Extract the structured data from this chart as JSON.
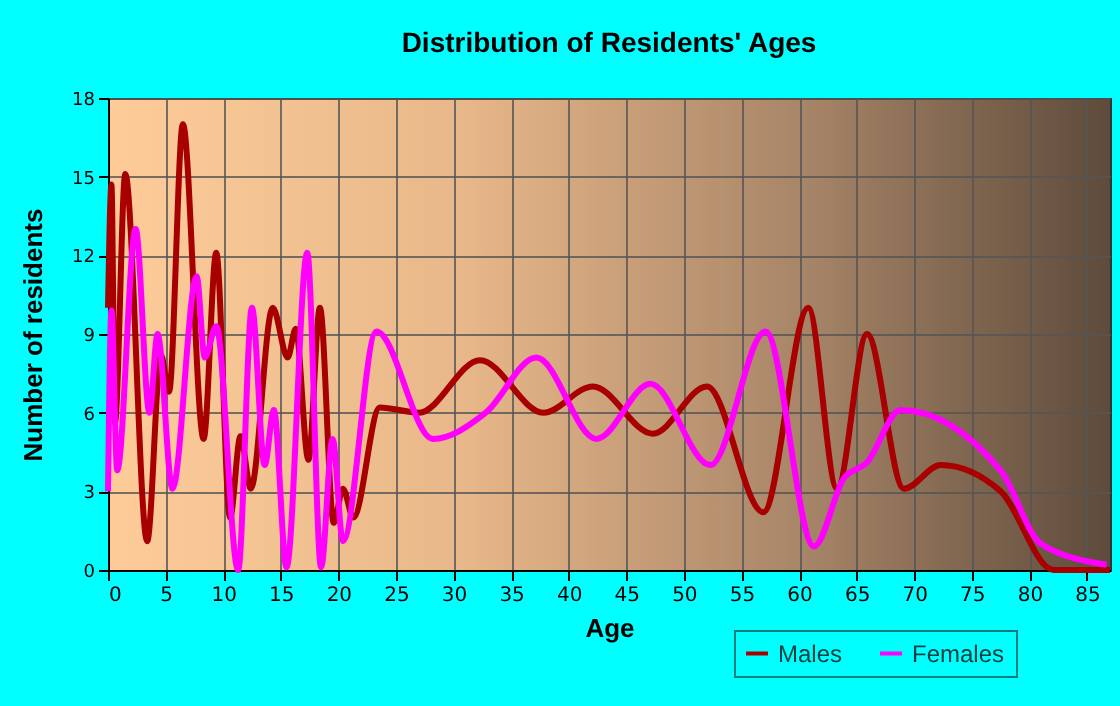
{
  "chart_data": {
    "type": "line",
    "title": "Distribution of Residents' Ages",
    "xlabel": "Age",
    "ylabel": "Number of residents",
    "xlim": [
      0,
      87
    ],
    "xticks": [
      0,
      5,
      10,
      15,
      20,
      25,
      30,
      35,
      40,
      45,
      50,
      55,
      60,
      65,
      70,
      75,
      80,
      85
    ],
    "ylim": [
      0,
      18
    ],
    "yticks": [
      0,
      3,
      6,
      9,
      12,
      15,
      18
    ],
    "grid": true,
    "legend": "bottom right",
    "marker": "none",
    "line_style": "solid",
    "series": [
      {
        "name": "Males",
        "color": "#a80000",
        "x": [
          0,
          0.3,
          0.6,
          1.5,
          3.4,
          4.6,
          5.3,
          6.5,
          8.3,
          9.4,
          10.6,
          11.5,
          12.4,
          14.3,
          15.6,
          16.3,
          17.4,
          18.4,
          19.6,
          20.4,
          21.3,
          23.6,
          27,
          32.3,
          37.8,
          42.1,
          47.3,
          52,
          56.9,
          60.8,
          63.3,
          65.9,
          69.1,
          72.3,
          77.5,
          82.1,
          87
        ],
        "values": [
          10,
          14.7,
          5.6,
          15.1,
          1.1,
          8.2,
          6.8,
          17,
          5,
          12.1,
          2,
          5.1,
          3.1,
          10,
          8.1,
          9.2,
          4.2,
          10,
          1.8,
          3.1,
          2,
          6.2,
          6,
          8,
          6,
          7,
          5.2,
          7,
          2.2,
          10,
          3.1,
          9,
          3.1,
          4,
          3,
          0,
          0
        ]
      },
      {
        "name": "Females",
        "color": "#ff00ff",
        "x": [
          0,
          0.3,
          0.8,
          2.4,
          3.6,
          4.3,
          5.6,
          7.7,
          8.4,
          9.4,
          11.3,
          12.5,
          13.6,
          14.4,
          15.5,
          17.3,
          18.5,
          19.5,
          20.4,
          23.3,
          28.2,
          32.8,
          37.2,
          42.4,
          47.1,
          52.3,
          57.1,
          61.3,
          63.9,
          65.9,
          68.8,
          77.5,
          81,
          86.7
        ],
        "values": [
          3,
          9.9,
          3.8,
          13,
          6,
          9,
          3.1,
          11.2,
          8.1,
          9.3,
          0,
          10,
          4,
          6.1,
          0.1,
          12.1,
          0.1,
          5,
          1.1,
          9.1,
          5,
          6,
          8.1,
          5,
          7.1,
          4,
          9.1,
          0.9,
          3.5,
          4.1,
          6.1,
          3.8,
          1,
          0.2
        ]
      }
    ]
  }
}
